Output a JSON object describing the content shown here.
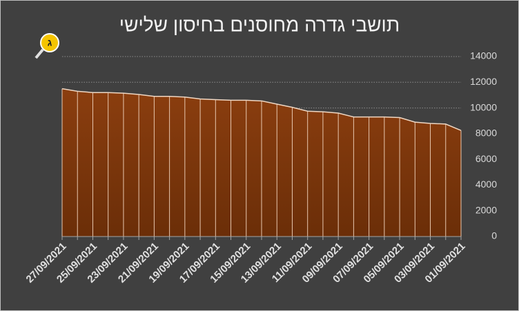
{
  "badge": "ג",
  "chart_data": {
    "type": "area",
    "title": "תושבי גדרה מחוסנים בחיסון שלישי",
    "categories": [
      "27/09/2021",
      null,
      "25/09/2021",
      null,
      "23/09/2021",
      null,
      "21/09/2021",
      null,
      "19/09/2021",
      null,
      "17/09/2021",
      null,
      "15/09/2021",
      null,
      "13/09/2021",
      null,
      "11/09/2021",
      null,
      "09/09/2021",
      null,
      "07/09/2021",
      null,
      "05/09/2021",
      null,
      "03/09/2021",
      null,
      "01/09/2021"
    ],
    "values": [
      11500,
      11300,
      11200,
      11200,
      11150,
      11050,
      10900,
      10900,
      10850,
      10700,
      10650,
      10600,
      10600,
      10550,
      10300,
      10050,
      9750,
      9700,
      9600,
      9300,
      9300,
      9300,
      9250,
      8900,
      8800,
      8750,
      8250
    ],
    "color": "#8b3e0f",
    "ylim": [
      0,
      14000
    ],
    "yticks": [
      0,
      2000,
      4000,
      6000,
      8000,
      10000,
      12000,
      14000
    ],
    "grid": true,
    "y_axis_side": "right"
  }
}
